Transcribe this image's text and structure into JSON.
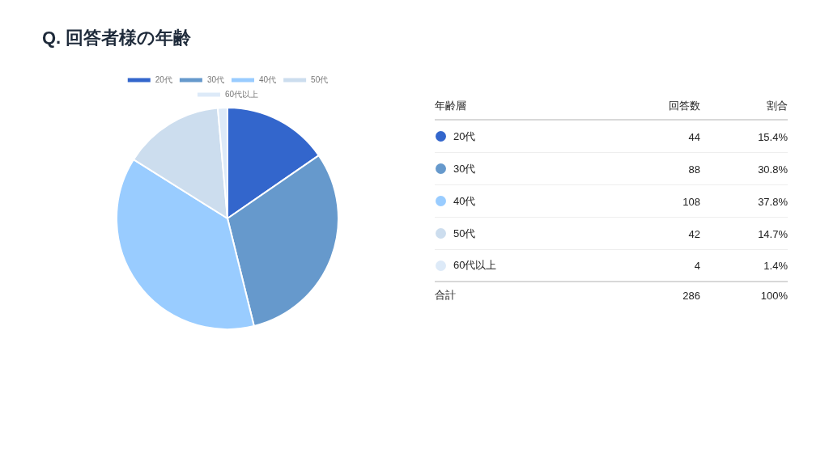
{
  "chart_data": {
    "type": "pie",
    "title": "Q. 回答者様の年齢",
    "legend_title": "年齢層",
    "categories": [
      "20代",
      "30代",
      "40代",
      "50代",
      "60代以上"
    ],
    "values": [
      15.4,
      30.8,
      37.8,
      14.7,
      1.4
    ],
    "colors": [
      "#3366cc",
      "#6699cc",
      "#99ccff",
      "#ccddee",
      "#ddeaf8"
    ],
    "legend": "top",
    "annotations": [
      "回答数",
      "割合",
      "44",
      "15.4%",
      "88",
      "30.8%",
      "108",
      "37.8%",
      "42",
      "14.7%",
      "4",
      "1.4%",
      "合計",
      "286",
      "100%"
    ]
  }
}
